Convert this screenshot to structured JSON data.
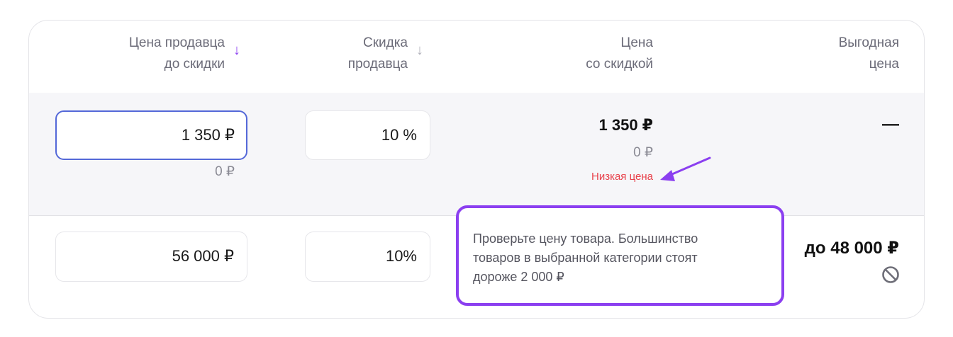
{
  "headers": [
    {
      "line1": "Цена продавца",
      "line2": "до скидки",
      "sort": "sort-down-icon",
      "active": true
    },
    {
      "line1": "Скидка",
      "line2": "продавца",
      "sort": "sort-down-icon",
      "active": false
    },
    {
      "line1": "Цена",
      "line2": "со скидкой"
    },
    {
      "line1": "Выгодная",
      "line2": "цена"
    }
  ],
  "rows": [
    {
      "price": "1 350 ₽",
      "price_sub": "0 ₽",
      "discount": "10 %",
      "discounted": "1 350 ₽",
      "discounted_sub": "0 ₽",
      "warning": "Низкая цена",
      "best": "—"
    },
    {
      "price": "56 000 ₽",
      "discount": "10%",
      "best": "до 48 000 ₽",
      "best_icon": "ban-icon"
    }
  ],
  "tooltip": {
    "text_lines": [
      "Проверьте цену товара. Большинство",
      "товаров в выбранной категории стоят",
      "дороже 2 000 ₽"
    ]
  },
  "colors": {
    "accent": "#8b3ff0",
    "focus": "#5468d8",
    "warning": "#e8414b"
  }
}
